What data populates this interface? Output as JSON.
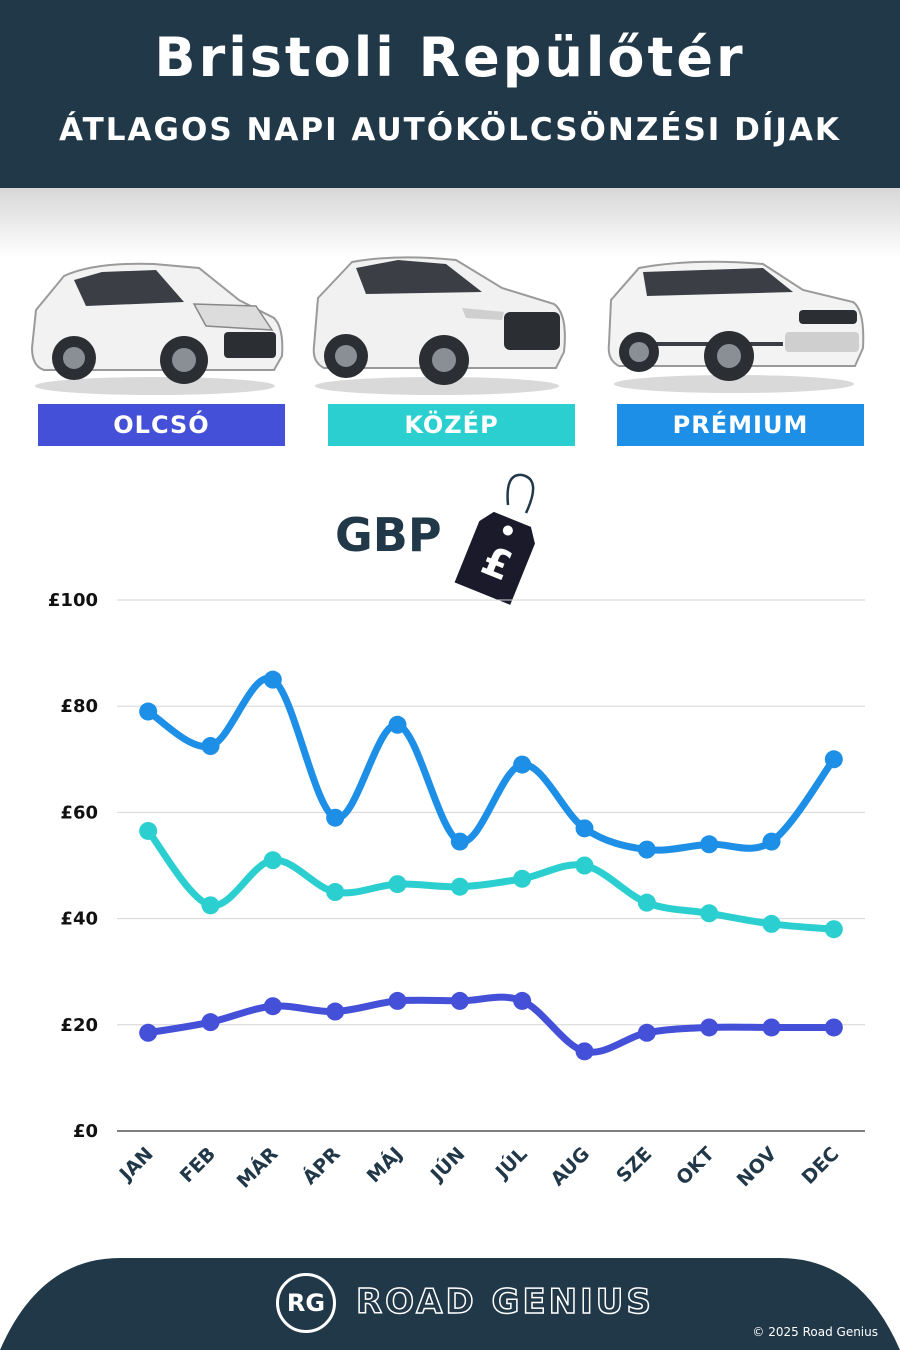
{
  "header": {
    "title": "Bristoli Repülőtér",
    "subtitle": "ÁTLAGOS NAPI AUTÓKÖLCSÖNZÉSI DÍJAK"
  },
  "categories": [
    {
      "label": "OLCSÓ",
      "color": "#4550d8"
    },
    {
      "label": "KÖZÉP",
      "color": "#2ccfcf"
    },
    {
      "label": "PRÉMIUM",
      "color": "#1e8fe6"
    }
  ],
  "currency": {
    "label": "GBP",
    "symbol": "£",
    "tag_icon": "price-tag-icon"
  },
  "chart_data": {
    "type": "line",
    "x": [
      "JAN",
      "FEB",
      "MÁR",
      "ÁPR",
      "MÁJ",
      "JÚN",
      "JÚL",
      "AUG",
      "SZE",
      "OKT",
      "NOV",
      "DEC"
    ],
    "y_ticks": [
      "£0",
      "£20",
      "£40",
      "£60",
      "£80",
      "£100"
    ],
    "ylim": [
      0,
      100
    ],
    "grid": true,
    "series": [
      {
        "name": "PRÉMIUM",
        "color": "#1e8fe6",
        "values": [
          79,
          72.5,
          85,
          59,
          76.5,
          54.5,
          69,
          57,
          53,
          54,
          54.5,
          70
        ]
      },
      {
        "name": "KÖZÉP",
        "color": "#2ccfcf",
        "values": [
          56.5,
          42.5,
          51,
          45,
          46.5,
          46,
          47.5,
          50,
          43,
          41,
          39,
          38
        ]
      },
      {
        "name": "OLCSÓ",
        "color": "#4550d8",
        "values": [
          18.5,
          20.5,
          23.5,
          22.5,
          24.5,
          24.5,
          24.5,
          15,
          18.5,
          19.5,
          19.5,
          19.5
        ]
      }
    ]
  },
  "footer": {
    "logo": "RG",
    "brand": "ROAD GENIUS",
    "copyright": "© 2025 Road Genius"
  }
}
